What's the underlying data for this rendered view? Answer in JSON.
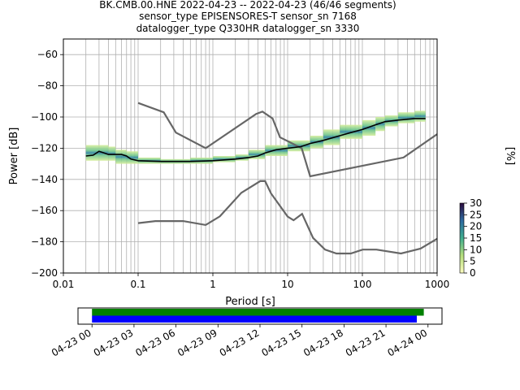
{
  "title": {
    "line1": "BK.CMB.00.HNE   2022-04-23 -- 2022-04-23  (46/46 segments)",
    "line2": "sensor_type EPISENSORES-T sensor_sn 7168",
    "line3": "datalogger_type Q330HR datalogger_sn 3330"
  },
  "chart_data": [
    {
      "type": "heatmap",
      "xlabel": "Period [s]",
      "ylabel": "Power [dB]",
      "xscale": "log",
      "xlim": [
        0.01,
        1000
      ],
      "ylim": [
        -200,
        -50
      ],
      "xticks": [
        {
          "v": 0.01,
          "label": "0.01"
        },
        {
          "v": 0.1,
          "label": "0.1"
        },
        {
          "v": 1,
          "label": "1"
        },
        {
          "v": 10,
          "label": "10"
        },
        {
          "v": 100,
          "label": "100"
        },
        {
          "v": 1000,
          "label": "1000"
        }
      ],
      "yticks": [
        {
          "v": -60,
          "label": "−60"
        },
        {
          "v": -80,
          "label": "−80"
        },
        {
          "v": -100,
          "label": "−100"
        },
        {
          "v": -120,
          "label": "−120"
        },
        {
          "v": -140,
          "label": "−140"
        },
        {
          "v": -160,
          "label": "−160"
        },
        {
          "v": -180,
          "label": "−180"
        },
        {
          "v": -200,
          "label": "−200"
        }
      ],
      "grid": true,
      "colorbar": {
        "label": "[%]",
        "min": 0,
        "max": 30,
        "ticks": [
          "0",
          "5",
          "10",
          "15",
          "20",
          "25",
          "30"
        ]
      },
      "mode_curve": [
        [
          0.02,
          -125
        ],
        [
          0.025,
          -124.5
        ],
        [
          0.03,
          -122
        ],
        [
          0.035,
          -123
        ],
        [
          0.04,
          -124
        ],
        [
          0.05,
          -124
        ],
        [
          0.06,
          -124
        ],
        [
          0.07,
          -125
        ],
        [
          0.08,
          -127
        ],
        [
          0.1,
          -128
        ],
        [
          0.2,
          -128.5
        ],
        [
          0.5,
          -128.5
        ],
        [
          1,
          -128
        ],
        [
          2,
          -127
        ],
        [
          3,
          -126
        ],
        [
          4,
          -125
        ],
        [
          5,
          -123
        ],
        [
          7,
          -121
        ],
        [
          10,
          -120
        ],
        [
          15,
          -119
        ],
        [
          20,
          -117
        ],
        [
          30,
          -115
        ],
        [
          50,
          -112
        ],
        [
          70,
          -110
        ],
        [
          100,
          -108
        ],
        [
          150,
          -105
        ],
        [
          200,
          -103
        ],
        [
          300,
          -102
        ],
        [
          500,
          -101
        ],
        [
          700,
          -101
        ]
      ],
      "density_band": [
        [
          0.02,
          -128,
          -120
        ],
        [
          0.03,
          -128,
          -118
        ],
        [
          0.04,
          -128,
          -119
        ],
        [
          0.05,
          -128,
          -121
        ],
        [
          0.07,
          -130,
          -122
        ],
        [
          0.1,
          -130,
          -126
        ],
        [
          0.2,
          -130,
          -127
        ],
        [
          0.5,
          -130,
          -127
        ],
        [
          1,
          -129,
          -126
        ],
        [
          2,
          -128,
          -125
        ],
        [
          3,
          -127,
          -124
        ],
        [
          5,
          -125,
          -121
        ],
        [
          10,
          -122,
          -118
        ],
        [
          20,
          -120,
          -115
        ],
        [
          30,
          -118,
          -112
        ],
        [
          50,
          -114,
          -108
        ],
        [
          100,
          -112,
          -105
        ],
        [
          150,
          -109,
          -102
        ],
        [
          200,
          -106,
          -100
        ],
        [
          300,
          -104,
          -99
        ],
        [
          500,
          -103,
          -97
        ],
        [
          700,
          -102,
          -96
        ]
      ],
      "nhnm": [
        [
          0.1,
          -91
        ],
        [
          0.22,
          -97
        ],
        [
          0.32,
          -110
        ],
        [
          0.8,
          -120
        ],
        [
          3.8,
          -98
        ],
        [
          4.6,
          -96.5
        ],
        [
          6.3,
          -101
        ],
        [
          7.9,
          -113
        ],
        [
          15.4,
          -120
        ],
        [
          20,
          -138
        ],
        [
          354.8,
          -126
        ],
        [
          1000,
          -111
        ]
      ],
      "nlnm": [
        [
          0.1,
          -168
        ],
        [
          0.17,
          -166.7
        ],
        [
          0.4,
          -166.7
        ],
        [
          0.8,
          -169.2
        ],
        [
          1.24,
          -163.7
        ],
        [
          2.4,
          -148.6
        ],
        [
          4.3,
          -141.1
        ],
        [
          5,
          -141.1
        ],
        [
          6,
          -149
        ],
        [
          10,
          -163.8
        ],
        [
          12,
          -166.2
        ],
        [
          15.6,
          -162.1
        ],
        [
          21.9,
          -177.5
        ],
        [
          31.6,
          -185
        ],
        [
          45,
          -187.5
        ],
        [
          70,
          -187.5
        ],
        [
          101,
          -185
        ],
        [
          154,
          -185
        ],
        [
          328,
          -187.5
        ],
        [
          600,
          -184.4
        ],
        [
          1000,
          -178
        ]
      ]
    },
    {
      "type": "bar",
      "xticks": [
        "04-23 00",
        "04-23 03",
        "04-23 06",
        "04-23 09",
        "04-23 12",
        "04-23 15",
        "04-23 18",
        "04-23 21",
        "04-24 00"
      ],
      "xlim_hours": [
        -1,
        25
      ],
      "series": [
        {
          "color": "#008000",
          "start_hour": 0,
          "end_hour": 23.7
        },
        {
          "color": "#0000ff",
          "start_hour": 0,
          "end_hour": 23.2
        }
      ]
    }
  ],
  "colors": {
    "model_curve": "#666666",
    "mode_curve": "#000000",
    "grid": "#b0b0b0"
  }
}
